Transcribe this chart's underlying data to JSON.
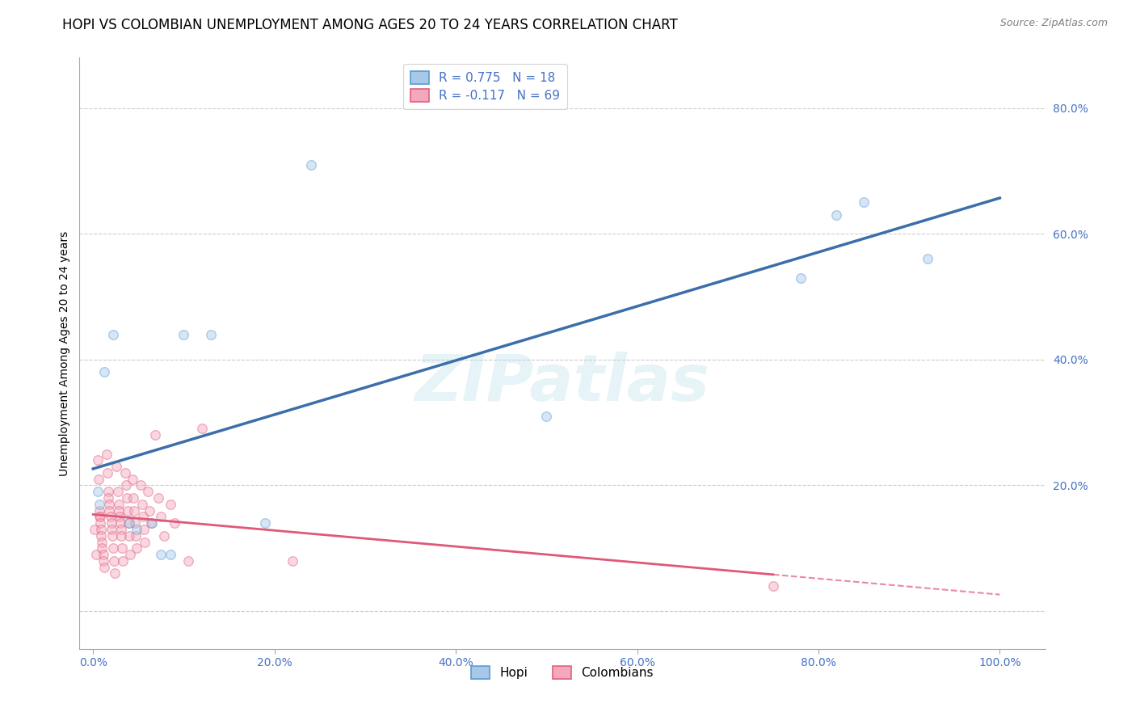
{
  "title": "HOPI VS COLOMBIAN UNEMPLOYMENT AMONG AGES 20 TO 24 YEARS CORRELATION CHART",
  "source": "Source: ZipAtlas.com",
  "tick_color": "#4472c4",
  "ylabel": "Unemployment Among Ages 20 to 24 years",
  "x_ticks": [
    0.0,
    0.2,
    0.4,
    0.6,
    0.8,
    1.0
  ],
  "x_tick_labels": [
    "0.0%",
    "20.0%",
    "40.0%",
    "60.0%",
    "80.0%",
    "100.0%"
  ],
  "y_ticks": [
    0.0,
    0.2,
    0.4,
    0.6,
    0.8
  ],
  "y_tick_labels": [
    "",
    "20.0%",
    "40.0%",
    "60.0%",
    "80.0%"
  ],
  "xlim": [
    -0.015,
    1.05
  ],
  "ylim": [
    -0.06,
    0.88
  ],
  "hopi_color": "#a8c8e8",
  "colombian_color": "#f4a8bc",
  "hopi_edge_color": "#5b9bd5",
  "colombian_edge_color": "#e06080",
  "hopi_line_color": "#3b6eaa",
  "colombian_line_color": "#e05878",
  "R_hopi": 0.775,
  "N_hopi": 18,
  "R_colombian": -0.117,
  "N_colombian": 69,
  "legend_label_hopi": "Hopi",
  "legend_label_colombian": "Colombians",
  "watermark": "ZIPatlas",
  "hopi_points": [
    [
      0.005,
      0.19
    ],
    [
      0.007,
      0.17
    ],
    [
      0.012,
      0.38
    ],
    [
      0.022,
      0.44
    ],
    [
      0.04,
      0.14
    ],
    [
      0.048,
      0.13
    ],
    [
      0.065,
      0.14
    ],
    [
      0.075,
      0.09
    ],
    [
      0.085,
      0.09
    ],
    [
      0.1,
      0.44
    ],
    [
      0.13,
      0.44
    ],
    [
      0.19,
      0.14
    ],
    [
      0.24,
      0.71
    ],
    [
      0.5,
      0.31
    ],
    [
      0.78,
      0.53
    ],
    [
      0.82,
      0.63
    ],
    [
      0.85,
      0.65
    ],
    [
      0.92,
      0.56
    ]
  ],
  "colombian_points": [
    [
      0.002,
      0.13
    ],
    [
      0.003,
      0.09
    ],
    [
      0.005,
      0.24
    ],
    [
      0.006,
      0.21
    ],
    [
      0.007,
      0.16
    ],
    [
      0.007,
      0.15
    ],
    [
      0.008,
      0.15
    ],
    [
      0.008,
      0.14
    ],
    [
      0.009,
      0.13
    ],
    [
      0.009,
      0.12
    ],
    [
      0.01,
      0.11
    ],
    [
      0.01,
      0.1
    ],
    [
      0.011,
      0.09
    ],
    [
      0.011,
      0.08
    ],
    [
      0.012,
      0.07
    ],
    [
      0.015,
      0.25
    ],
    [
      0.016,
      0.22
    ],
    [
      0.017,
      0.19
    ],
    [
      0.017,
      0.18
    ],
    [
      0.018,
      0.17
    ],
    [
      0.018,
      0.16
    ],
    [
      0.019,
      0.15
    ],
    [
      0.02,
      0.14
    ],
    [
      0.02,
      0.13
    ],
    [
      0.021,
      0.12
    ],
    [
      0.022,
      0.1
    ],
    [
      0.023,
      0.08
    ],
    [
      0.024,
      0.06
    ],
    [
      0.026,
      0.23
    ],
    [
      0.027,
      0.19
    ],
    [
      0.028,
      0.17
    ],
    [
      0.028,
      0.16
    ],
    [
      0.029,
      0.15
    ],
    [
      0.03,
      0.14
    ],
    [
      0.031,
      0.13
    ],
    [
      0.031,
      0.12
    ],
    [
      0.032,
      0.1
    ],
    [
      0.033,
      0.08
    ],
    [
      0.035,
      0.22
    ],
    [
      0.036,
      0.2
    ],
    [
      0.037,
      0.18
    ],
    [
      0.038,
      0.16
    ],
    [
      0.039,
      0.14
    ],
    [
      0.04,
      0.12
    ],
    [
      0.041,
      0.09
    ],
    [
      0.043,
      0.21
    ],
    [
      0.044,
      0.18
    ],
    [
      0.045,
      0.16
    ],
    [
      0.046,
      0.14
    ],
    [
      0.047,
      0.12
    ],
    [
      0.048,
      0.1
    ],
    [
      0.052,
      0.2
    ],
    [
      0.054,
      0.17
    ],
    [
      0.055,
      0.15
    ],
    [
      0.056,
      0.13
    ],
    [
      0.057,
      0.11
    ],
    [
      0.06,
      0.19
    ],
    [
      0.062,
      0.16
    ],
    [
      0.064,
      0.14
    ],
    [
      0.068,
      0.28
    ],
    [
      0.072,
      0.18
    ],
    [
      0.075,
      0.15
    ],
    [
      0.078,
      0.12
    ],
    [
      0.085,
      0.17
    ],
    [
      0.09,
      0.14
    ],
    [
      0.105,
      0.08
    ],
    [
      0.22,
      0.08
    ],
    [
      0.75,
      0.04
    ],
    [
      0.12,
      0.29
    ]
  ],
  "background_color": "#ffffff",
  "grid_color": "#cccccc",
  "title_fontsize": 12,
  "axis_label_fontsize": 10,
  "tick_fontsize": 10,
  "legend_fontsize": 11,
  "marker_size": 70,
  "marker_alpha": 0.45,
  "marker_linewidth": 1.0
}
